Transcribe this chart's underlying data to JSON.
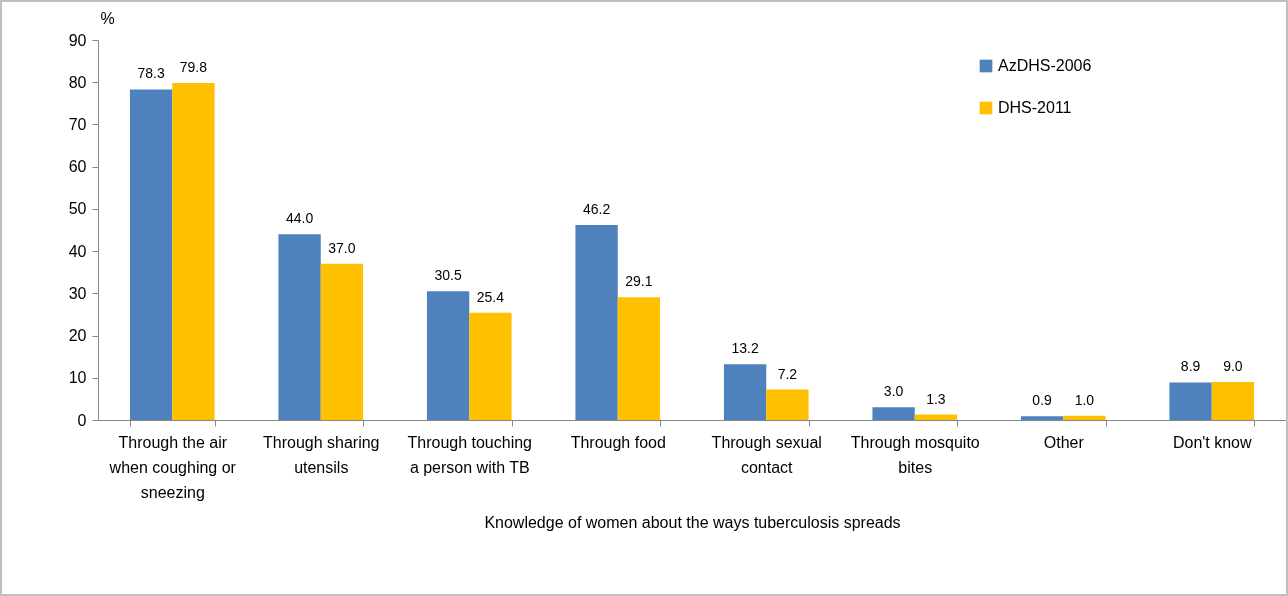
{
  "chart_data": {
    "type": "bar",
    "xlabel": "Knowledge of women about the ways tuberculosis spreads",
    "ylabel": "%",
    "categories": [
      "Through the air when coughing or sneezing",
      "Through sharing utensils",
      "Through touching a person with TB",
      "Through food",
      "Through sexual contact",
      "Through mosquito bites",
      "Other",
      "Don't know"
    ],
    "series": [
      {
        "name": "AzDHS-2006",
        "color": "#4f81bd",
        "values": [
          78.3,
          44.0,
          30.5,
          46.2,
          13.2,
          3.0,
          0.9,
          8.9
        ],
        "value_labels": [
          "78.3",
          "44.0",
          "30.5",
          "46.2",
          "13.2",
          "3.0",
          "0.9",
          "8.9"
        ]
      },
      {
        "name": "DHS-2011",
        "color": "#ffc000",
        "values": [
          79.8,
          37.0,
          25.4,
          29.1,
          7.2,
          1.3,
          1.0,
          9.0
        ],
        "value_labels": [
          "79.8",
          "37.0",
          "25.4",
          "29.1",
          "7.2",
          "1.3",
          "1.0",
          "9.0"
        ]
      }
    ],
    "ylim": [
      0,
      90
    ],
    "yticks": [
      0,
      10,
      20,
      30,
      40,
      50,
      60,
      70,
      80,
      90
    ],
    "grid": false,
    "legend": "top right"
  }
}
